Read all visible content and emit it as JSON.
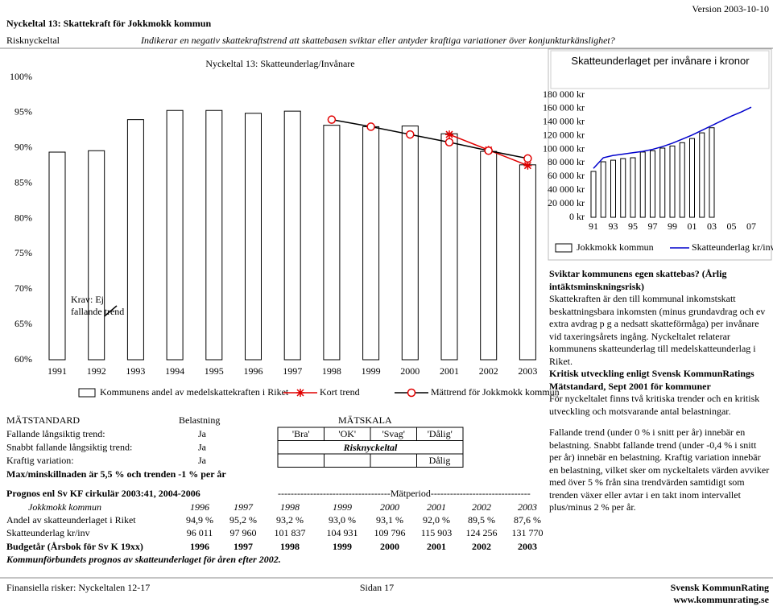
{
  "header": {
    "title": "Nyckeltal 13: Skattekraft för Jokkmokk kommun",
    "version": "Version 2003-10-10",
    "category": "Risknyckeltal",
    "subtitle": "Indikerar en negativ skattekraftstrend att skattebasen sviktar eller antyder kraftiga variationer över konjunkturkänslighet?"
  },
  "chart_data": [
    {
      "type": "bar",
      "title": "Nyckeltal 13: Skatteunderlag/Invånare",
      "categories": [
        "1991",
        "1992",
        "1993",
        "1994",
        "1995",
        "1996",
        "1997",
        "1998",
        "1999",
        "2000",
        "2001",
        "2002",
        "2003"
      ],
      "ylim": [
        60,
        100
      ],
      "yticks": [
        {
          "value": 60,
          "label": "60%"
        },
        {
          "value": 65,
          "label": "65%"
        },
        {
          "value": 70,
          "label": "70%"
        },
        {
          "value": 75,
          "label": "75%"
        },
        {
          "value": 80,
          "label": "80%"
        },
        {
          "value": 85,
          "label": "85%"
        },
        {
          "value": 90,
          "label": "90%"
        },
        {
          "value": 95,
          "label": "95%"
        },
        {
          "value": 100,
          "label": "100%"
        }
      ],
      "annotation": [
        "Krav: Ej",
        "fallande trend"
      ],
      "series": [
        {
          "name": "Kommunens andel av medelskattekraften i Riket",
          "type": "bar",
          "color": "#ffffff",
          "values": [
            89.4,
            89.6,
            94.0,
            95.3,
            95.3,
            94.9,
            95.2,
            93.2,
            93.0,
            93.1,
            92.0,
            89.5,
            87.6
          ]
        },
        {
          "name": "Kort trend",
          "type": "line",
          "marker": "asterisk",
          "color": "#e00000",
          "values": [
            null,
            null,
            null,
            null,
            null,
            null,
            null,
            null,
            null,
            null,
            91.9,
            89.7,
            87.5
          ]
        },
        {
          "name": "Mättrend för Jokkmokk kommun",
          "type": "line",
          "marker": "circle",
          "color": "#000000",
          "marker_color": "#e00000",
          "values": [
            null,
            null,
            null,
            null,
            null,
            null,
            null,
            94.0,
            93.0,
            91.9,
            90.8,
            89.6,
            88.5
          ]
        }
      ]
    },
    {
      "type": "bar",
      "title": "Skatteunderlaget per invånare i kronor",
      "categories": [
        "91",
        null,
        "93",
        null,
        "95",
        null,
        "97",
        null,
        "99",
        null,
        "01",
        null,
        "03",
        null,
        "05",
        null,
        "07"
      ],
      "ylim": [
        0,
        180000
      ],
      "yticks": [
        {
          "value": 0,
          "label": "0 kr"
        },
        {
          "value": 20000,
          "label": "20 000 kr"
        },
        {
          "value": 40000,
          "label": "40 000 kr"
        },
        {
          "value": 60000,
          "label": "60 000 kr"
        },
        {
          "value": 80000,
          "label": "80 000 kr"
        },
        {
          "value": 100000,
          "label": "100 000 kr"
        },
        {
          "value": 120000,
          "label": "120 000 kr"
        },
        {
          "value": 140000,
          "label": "140 000 kr"
        },
        {
          "value": 160000,
          "label": "160 000 kr"
        },
        {
          "value": 180000,
          "label": "180 000 kr"
        }
      ],
      "series": [
        {
          "name": "Jokkmokk kommun",
          "type": "bar",
          "color": "#ffffff",
          "values": [
            67500,
            81700,
            84000,
            86400,
            87600,
            96011,
            97960,
            101837,
            104931,
            109796,
            115903,
            124256,
            131770,
            null,
            null,
            null,
            null
          ]
        },
        {
          "name": "Skatteunderlag kr/inv",
          "type": "line",
          "color": "#0000cc",
          "values": [
            72000,
            87600,
            91000,
            93000,
            95000,
            97000,
            100000,
            104000,
            109000,
            115000,
            121000,
            128000,
            135000,
            142000,
            149000,
            155000,
            162000
          ]
        }
      ]
    }
  ],
  "description": {
    "heading": "Sviktar kommunens egen skattebas? (Årlig intäktsminskningsrisk)",
    "body": "Skattekraften är den till kommunal inkomstskatt beskattningsbara inkomsten (minus grundavdrag och ev extra avdrag p g a nedsatt skatteförmåga) per invånare vid taxeringsårets ingång. Nyckeltalet relaterar kommunens skatteunderlag till medelskatteunderlag i Riket."
  },
  "rating": {
    "heading": "Kritisk utveckling enligt Svensk KommunRatings Mätstandard, Sept 2001 för kommuner",
    "body": "För nyckeltalet finns två kritiska trender och en kritisk utveckling och motsvarande antal belastningar.",
    "details": "Fallande trend (under 0 % i snitt per år) innebär en belastning. Snabbt fallande trend (under -0,4 % i snitt per år) innebär en belastning. Kraftig variation innebär en belastning, vilket sker om nyckeltalets värden avviker med över 5 % från sina trendvärden samtidigt som trenden växer eller avtar i en takt inom intervallet plus/minus 2 % per år."
  },
  "standard": {
    "title": "MÄTSTANDARD",
    "load_title": "Belastning",
    "rows": [
      [
        "Fallande långsiktig trend:",
        "Ja"
      ],
      [
        "Snabbt fallande långsiktig trend:",
        "Ja"
      ],
      [
        "Kraftig variation:",
        "Ja"
      ]
    ],
    "note": "Max/minskillnaden är 5,5 % och trenden -1 % per år"
  },
  "scale": {
    "title": "MÄTSKALA",
    "levels": [
      "'Bra'",
      "'OK'",
      "'Svag'",
      "'Dålig'"
    ],
    "result_label": "Risknyckeltal",
    "result": "Dålig"
  },
  "prognos": {
    "source": "Prognos enl Sv KF cirkulär 2003:41, 2004-2006",
    "period": "-----------------------------------Mätperiod-------------------------------"
  },
  "table": {
    "rows": [
      [
        "Jokkmokk kommun",
        "1996",
        "1997",
        "1998",
        "1999",
        "2000",
        "2001",
        "2002",
        "2003"
      ],
      [
        "Andel av skatteunderlaget i Riket",
        "94,9 %",
        "95,2 %",
        "93,2 %",
        "93,0 %",
        "93,1 %",
        "92,0 %",
        "89,5 %",
        "87,6 %"
      ],
      [
        "Skatteunderlag kr/inv",
        "96 011",
        "97 960",
        "101 837",
        "104 931",
        "109 796",
        "115 903",
        "124 256",
        "131 770"
      ],
      [
        "Budgetår (Årsbok för Sv K 19xx)",
        "1996",
        "1997",
        "1998",
        "1999",
        "2000",
        "2001",
        "2002",
        "2003"
      ]
    ],
    "note": "Kommunförbundets prognos av skatteunderlaget för åren efter 2002."
  },
  "footer": {
    "section": "Finansiella risker: Nyckeltalen 12-17",
    "page": "Sidan 17",
    "company": "Svensk KommunRating",
    "url": "www.kommunrating.se"
  }
}
